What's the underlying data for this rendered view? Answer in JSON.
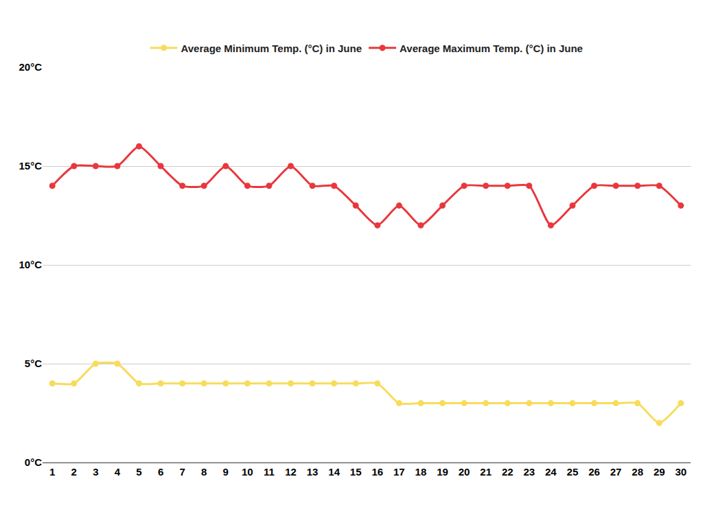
{
  "chart_data": {
    "type": "line",
    "categories": [
      "1",
      "2",
      "3",
      "4",
      "5",
      "6",
      "7",
      "8",
      "9",
      "10",
      "11",
      "12",
      "13",
      "14",
      "15",
      "16",
      "17",
      "18",
      "19",
      "20",
      "21",
      "22",
      "23",
      "24",
      "25",
      "26",
      "27",
      "28",
      "29",
      "30"
    ],
    "series": [
      {
        "name": "Average Minimum Temp. (°C) in June",
        "color": "#f7dc5c",
        "marker": "circle",
        "line_style": "solid",
        "values": [
          4,
          4,
          5,
          5,
          4,
          4,
          4,
          4,
          4,
          4,
          4,
          4,
          4,
          4,
          4,
          4,
          3,
          3,
          3,
          3,
          3,
          3,
          3,
          3,
          3,
          3,
          3,
          3,
          2,
          3
        ]
      },
      {
        "name": "Average Maximum Temp. (°C) in June",
        "color": "#e8383d",
        "marker": "circle",
        "line_style": "solid",
        "values": [
          14,
          15,
          15,
          15,
          16,
          15,
          14,
          14,
          15,
          14,
          14,
          15,
          14,
          14,
          13,
          12,
          13,
          12,
          13,
          14,
          14,
          14,
          14,
          12,
          13,
          14,
          14,
          14,
          14,
          13
        ]
      }
    ],
    "ylim": [
      0,
      20
    ],
    "yticks": [
      {
        "value": 0,
        "label": "0°C"
      },
      {
        "value": 5,
        "label": "5°C"
      },
      {
        "value": 10,
        "label": "10°C"
      },
      {
        "value": 15,
        "label": "15°C"
      },
      {
        "value": 20,
        "label": "20°C"
      }
    ],
    "grid": true,
    "legend": "top"
  }
}
